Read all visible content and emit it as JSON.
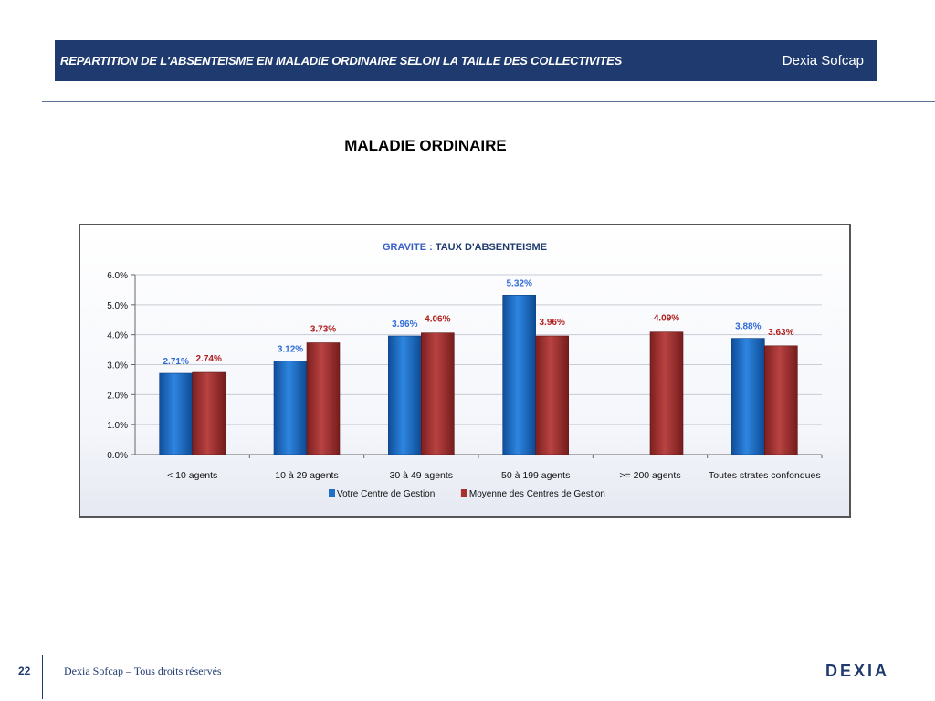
{
  "header": {
    "title": "REPARTITION DE L'ABSENTEISME EN MALADIE ORDINAIRE SELON LA TAILLE DES COLLECTIVITES",
    "brand": "Dexia Sofcap"
  },
  "section_title": "MALADIE ORDINAIRE",
  "footer": {
    "page_number": "22",
    "copyright": "Dexia Sofcap – Tous droits réservés",
    "logo": "DEXIA"
  },
  "colors": {
    "series1": "#1f6fc8",
    "series2": "#a8302f",
    "banner": "#1f3a6e"
  },
  "chart_data": {
    "type": "bar",
    "title_part1": "GRAVITE",
    "title_sep": " : ",
    "title_part2": "TAUX D'ABSENTEISME",
    "categories": [
      "< 10 agents",
      "10 à 29 agents",
      "30 à 49 agents",
      "50 à 199 agents",
      ">= 200 agents",
      "Toutes strates confondues"
    ],
    "series": [
      {
        "name": "Votre Centre de Gestion",
        "values": [
          2.71,
          3.12,
          3.96,
          5.32,
          null,
          3.88
        ],
        "labels": [
          "2.71%",
          "3.12%",
          "3.96%",
          "5.32%",
          "",
          "3.88%"
        ]
      },
      {
        "name": "Moyenne des Centres de Gestion",
        "values": [
          2.74,
          3.73,
          4.06,
          3.96,
          4.09,
          3.63
        ],
        "labels": [
          "2.74%",
          "3.73%",
          "4.06%",
          "3.96%",
          "4.09%",
          "3.63%"
        ]
      }
    ],
    "yticks": [
      "0.0%",
      "1.0%",
      "2.0%",
      "3.0%",
      "4.0%",
      "5.0%",
      "6.0%"
    ],
    "ylim": [
      0,
      6
    ],
    "grid": true,
    "legend_position": "bottom"
  }
}
